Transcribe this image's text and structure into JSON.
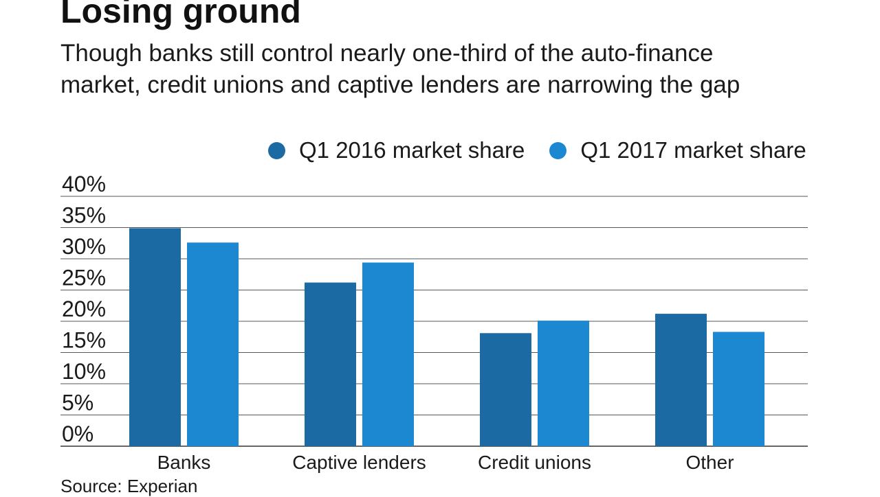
{
  "title": "Losing ground",
  "subtitle": "Though banks still control nearly one-third of the auto-finance market, credit unions and captive lenders are narrowing the gap",
  "source": "Source: Experian",
  "legend": [
    {
      "label": "Q1 2016 market share",
      "color": "#1b6aa3"
    },
    {
      "label": "Q1 2017 market share",
      "color": "#1c88d2"
    }
  ],
  "chart_data": {
    "type": "bar",
    "title": "Losing ground",
    "categories": [
      "Banks",
      "Captive lenders",
      "Credit unions",
      "Other"
    ],
    "series": [
      {
        "name": "Q1 2016 market share",
        "color": "#1b6aa3",
        "values": [
          34.9,
          26.2,
          18.1,
          21.2
        ]
      },
      {
        "name": "Q1 2017 market share",
        "color": "#1c88d2",
        "values": [
          32.6,
          29.4,
          20.1,
          18.3
        ]
      }
    ],
    "y_ticks": [
      "0%",
      "5%",
      "10%",
      "15%",
      "20%",
      "25%",
      "30%",
      "35%",
      "40%"
    ],
    "ylim": [
      0,
      40
    ],
    "grid": true,
    "legend_position": "top-right",
    "xlabel": "",
    "ylabel": ""
  }
}
